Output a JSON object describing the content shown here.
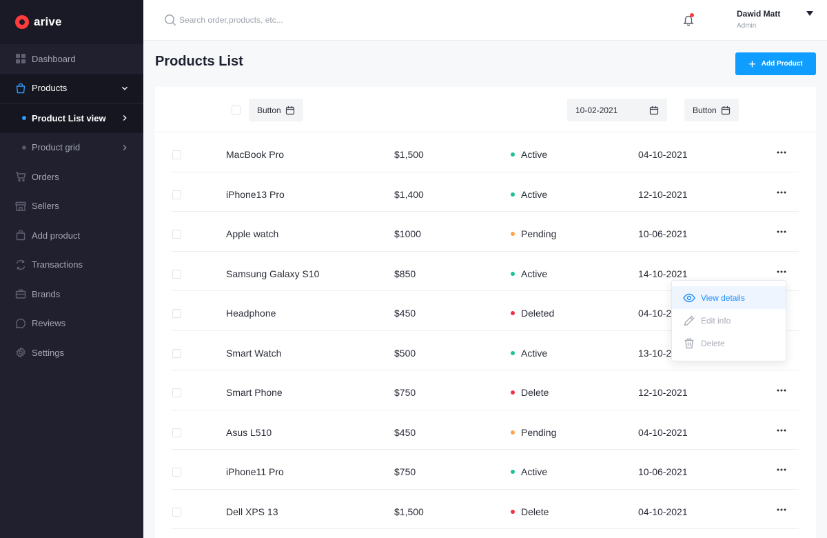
{
  "brand": {
    "name": "arive"
  },
  "sidebar": {
    "items": [
      {
        "label": "Dashboard"
      },
      {
        "label": "Products"
      },
      {
        "label": "Product List view"
      },
      {
        "label": "Product grid"
      },
      {
        "label": "Orders"
      },
      {
        "label": "Sellers"
      },
      {
        "label": "Add product"
      },
      {
        "label": "Transactions"
      },
      {
        "label": "Brands"
      },
      {
        "label": "Reviews"
      },
      {
        "label": "Settings"
      }
    ]
  },
  "topbar": {
    "search_placeholder": "Search order,products, etc...",
    "user_name": "Dawid Matt",
    "user_role": "Admin"
  },
  "page": {
    "title": "Products List",
    "add_button": "Add Product"
  },
  "filters": {
    "button1": "Button",
    "date": "10-02-2021",
    "button2": "Button"
  },
  "products": [
    {
      "name": "MacBook Pro",
      "price": "$1,500",
      "status": "Active",
      "date": "04-10-2021"
    },
    {
      "name": "iPhone13 Pro",
      "price": "$1,400",
      "status": "Active",
      "date": "12-10-2021"
    },
    {
      "name": "Apple watch",
      "price": "$1000",
      "status": "Pending",
      "date": "10-06-2021"
    },
    {
      "name": "Samsung Galaxy S10",
      "price": "$850",
      "status": "Active",
      "date": "14-10-2021"
    },
    {
      "name": "Headphone",
      "price": "$450",
      "status": "Deleted",
      "date": "04-10-2021"
    },
    {
      "name": "Smart Watch",
      "price": "$500",
      "status": "Active",
      "date": "13-10-2021"
    },
    {
      "name": "Smart Phone",
      "price": "$750",
      "status": "Delete",
      "date": "12-10-2021"
    },
    {
      "name": "Asus L510",
      "price": "$450",
      "status": "Pending",
      "date": "04-10-2021"
    },
    {
      "name": "iPhone11 Pro",
      "price": "$750",
      "status": "Active",
      "date": "10-06-2021"
    },
    {
      "name": "Dell XPS 13",
      "price": "$1,500",
      "status": "Delete",
      "date": "04-10-2021"
    }
  ],
  "status_colors": {
    "Active": "#1fc19a",
    "Pending": "#ffa24d",
    "Deleted": "#f0324a",
    "Delete": "#f0324a"
  },
  "row_menu": {
    "items": [
      {
        "label": "View details",
        "icon": "eye-icon"
      },
      {
        "label": "Edit info",
        "icon": "pencil-icon"
      },
      {
        "label": "Delete",
        "icon": "trash-icon"
      }
    ]
  },
  "colors": {
    "accent": "#0f9dff",
    "sidebar": "#20202e",
    "brand": "#ff3b3b"
  }
}
